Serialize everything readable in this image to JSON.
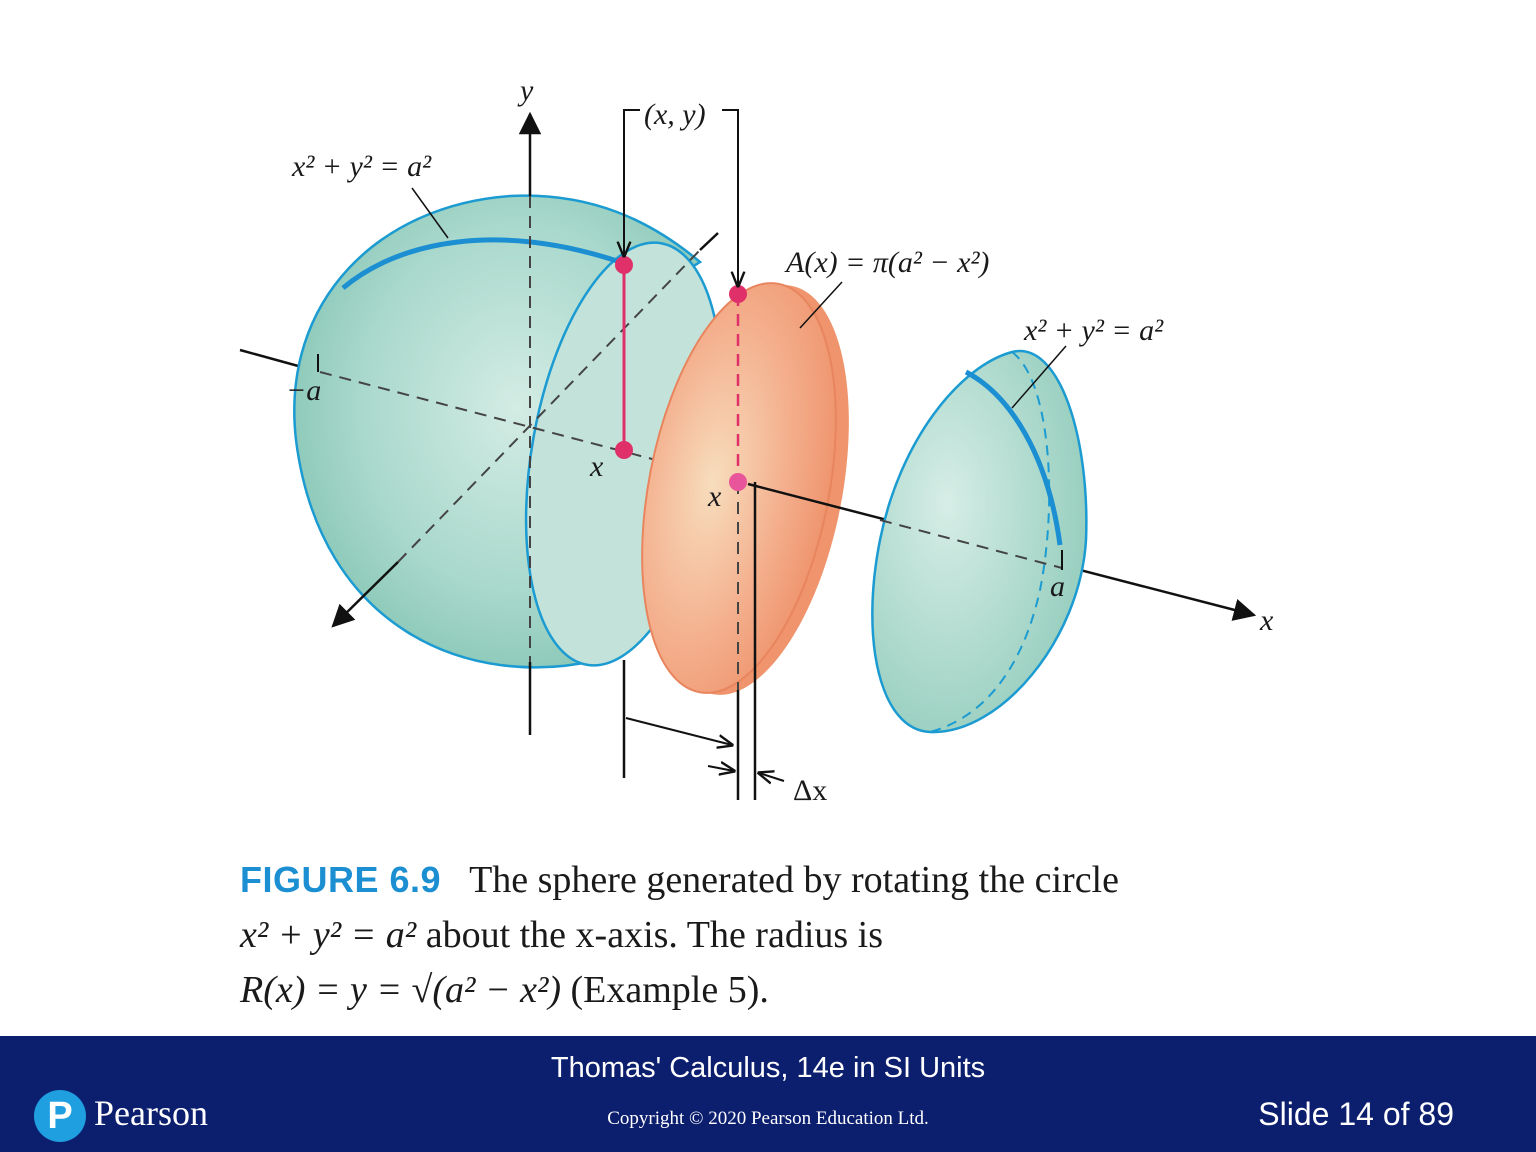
{
  "diagram": {
    "labels": {
      "y_axis": "y",
      "x_axis": "x",
      "point": "(x, y)",
      "circle_eq_left": "x² + y² = a²",
      "circle_eq_right": "x² + y² = a²",
      "area_formula": "A(x) = π(a² − x²)",
      "minus_a": "−a",
      "a": "a",
      "x_mark_1": "x",
      "x_mark_2": "x",
      "delta_x": "Δx"
    },
    "colors": {
      "sphere_fill": "#a9d8cc",
      "sphere_edge": "#1b9bd1",
      "slice_fill": "#f2a07b",
      "slice_edge": "#e8855e",
      "point": "#e0306a",
      "axis": "#111111"
    }
  },
  "caption": {
    "figure_label": "FIGURE 6.9",
    "line1": "The sphere generated by rotating the circle",
    "line2_eq": "x² + y² = a²",
    "line2_rest": "about the x-axis. The radius is",
    "line3_eq": "R(x) = y = √(a² − x²)",
    "line3_rest": "(Example 5)."
  },
  "footer": {
    "title": "Thomas' Calculus, 14e in SI Units",
    "copyright": "Copyright © 2020 Pearson Education Ltd.",
    "slide_counter": "Slide 14 of 89",
    "logo_letter": "P",
    "logo_word": "Pearson"
  }
}
